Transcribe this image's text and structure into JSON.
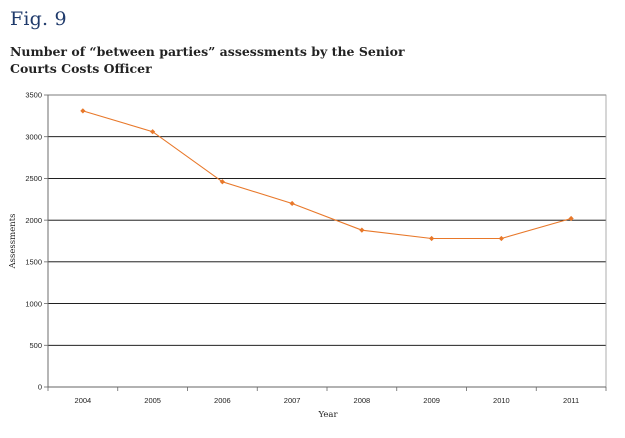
{
  "figure_label": "Fig. 9",
  "chart_data": {
    "type": "line",
    "title": "Number of “between parties” assessments by the Senior Courts Costs Officer",
    "xlabel": "Year",
    "ylabel": "Assessments",
    "categories": [
      "2004",
      "2005",
      "2006",
      "2007",
      "2008",
      "2009",
      "2010",
      "2011"
    ],
    "series": [
      {
        "values": [
          3310,
          3060,
          2460,
          2200,
          1880,
          1780,
          1780,
          2020
        ],
        "color": "#e8782a"
      }
    ],
    "ylim": [
      0,
      3500
    ],
    "yticks": [
      "0",
      "500",
      "1000",
      "1500",
      "2000",
      "2500",
      "3000",
      "3500"
    ],
    "grid": true,
    "legend": "none",
    "colors": {
      "line": "#e8782a",
      "grid": "#000000",
      "title": "#1f3a6b"
    }
  }
}
